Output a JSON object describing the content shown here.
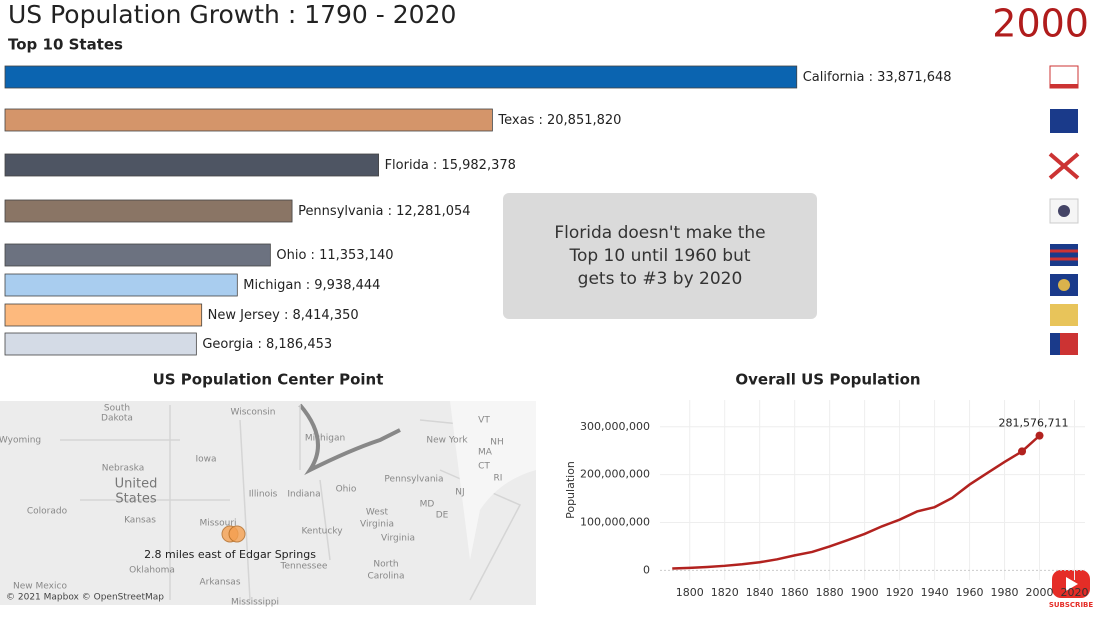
{
  "header": {
    "title": "US Population Growth : 1790 - 2020",
    "subtitle": "Top 10 States",
    "year": "2000"
  },
  "annotation": [
    "Florida doesn't make the",
    "Top 10 until 1960 but",
    "gets to #3 by 2020"
  ],
  "chart_data": [
    {
      "type": "hbar",
      "categories": [
        "California",
        "Texas",
        "Florida",
        "Pennsylvania",
        "Ohio",
        "Michigan",
        "New Jersey",
        "Georgia"
      ],
      "separator": " : ",
      "values": [
        33871648,
        20851820,
        15982378,
        12281054,
        11353140,
        9938444,
        8414350,
        8186453
      ],
      "value_labels": [
        "33,871,648",
        "20,851,820",
        "15,982,378",
        "12,281,054",
        "11,353,140",
        "9,938,444",
        "8,414,350",
        "8,186,453"
      ],
      "colors": [
        "#0b64b0",
        "#d4956a",
        "#4e5563",
        "#8a7565",
        "#6c7280",
        "#a9cdef",
        "#fdb97d",
        "#d4dbe6"
      ],
      "xlim": [
        0,
        40000000
      ]
    },
    {
      "type": "line",
      "title": "Overall US Population",
      "ylabel": "Population",
      "color": "#b2221f",
      "x": [
        1790,
        1800,
        1810,
        1820,
        1830,
        1840,
        1850,
        1860,
        1870,
        1880,
        1890,
        1900,
        1910,
        1920,
        1930,
        1940,
        1950,
        1960,
        1970,
        1980,
        1990,
        2000
      ],
      "values": [
        3929214,
        5308483,
        7239881,
        9638453,
        12866020,
        17069453,
        23191876,
        31443321,
        38558371,
        50189209,
        62979766,
        76212168,
        92228496,
        106021537,
        123202624,
        132164569,
        151325798,
        179323175,
        203211926,
        226545805,
        248709873,
        281576711
      ],
      "value_labels": {
        "21": "281,576,711"
      },
      "xlim": [
        1783,
        2026
      ],
      "xticks": [
        1800,
        1820,
        1840,
        1860,
        1880,
        1900,
        1920,
        1940,
        1960,
        1980,
        2000,
        2020
      ],
      "ylim": [
        -20000000,
        356000000
      ],
      "yticks": [
        0,
        {
          "value": 100000000,
          "label": "100,000,000"
        },
        {
          "value": 200000000,
          "label": "200,000,000"
        },
        {
          "value": 300000000,
          "label": "300,000,000"
        }
      ],
      "grid": true
    }
  ],
  "map": {
    "title": "US Population Center Point",
    "labels": [
      "South",
      "Dakota",
      "Wisconsin",
      "Michigan",
      "New York",
      "VT",
      "NH",
      "MA",
      "CT",
      "RI",
      "Wyoming",
      "Nebraska",
      "Iowa",
      "Illinois",
      "Indiana",
      "Ohio",
      "Pennsylvania",
      "MD",
      "DE",
      "NJ",
      "Colorado",
      "Kansas",
      "Missouri",
      "West",
      "Virginia",
      "Kentucky",
      "Virginia",
      "Tennessee",
      "North",
      "Carolina",
      "Oklahoma",
      "Arkansas",
      "New Mexico",
      "Mississippi"
    ],
    "country": [
      "United",
      "States"
    ],
    "marker_label": "2.8 miles east of Edgar Springs",
    "attribution": "© 2021 Mapbox © OpenStreetMap"
  },
  "subscribe": "SUBSCRIBE"
}
